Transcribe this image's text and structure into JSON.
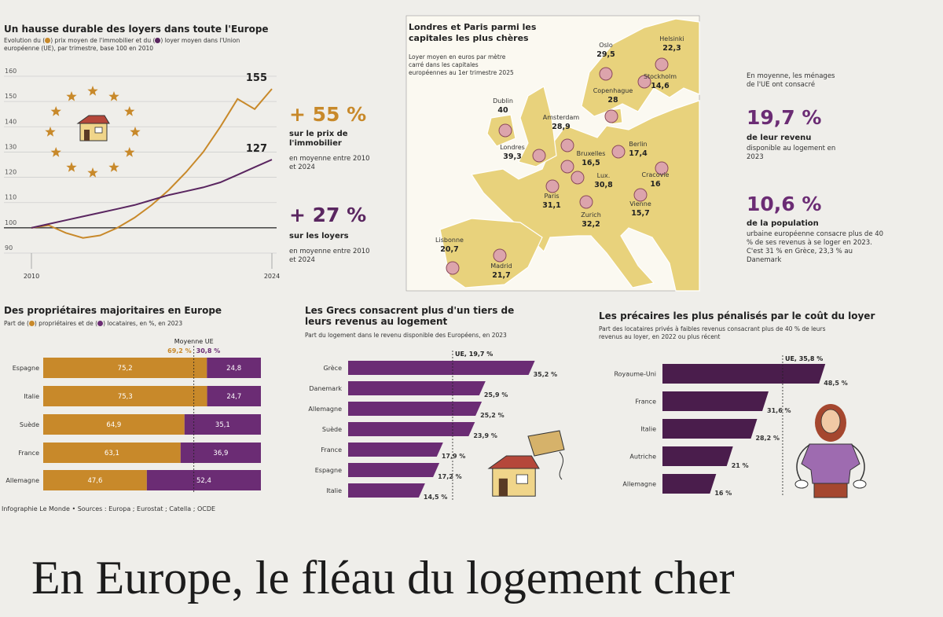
{
  "chart_data": [
    {
      "type": "line",
      "title": "Un hausse durable des loyers dans toute l'Europe",
      "subtitle": [
        "Evolution du (",
        ") prix moyen de l'immobilier et du (",
        ") loyer moyen dans l'Union européenne (UE), par trimestre, base 100 en 2010"
      ],
      "x": [
        2010,
        2011,
        2012,
        2013,
        2014,
        2015,
        2016,
        2017,
        2018,
        2019,
        2020,
        2021,
        2022,
        2023,
        2024
      ],
      "xlim": [
        2010,
        2024
      ],
      "xticks": [
        2010,
        2024
      ],
      "ylim": [
        90,
        160
      ],
      "yticks": [
        90,
        100,
        110,
        120,
        130,
        140,
        150,
        160
      ],
      "grid": true,
      "baseline": 100,
      "series": [
        {
          "color": "#c8892a",
          "values": [
            100,
            101,
            98,
            96,
            97,
            100,
            104,
            109,
            115,
            122,
            130,
            140,
            151,
            147,
            155
          ]
        },
        {
          "color": "#5a2660",
          "values": [
            100,
            101.5,
            103,
            104.5,
            106,
            107.5,
            109,
            111,
            113,
            114.5,
            116,
            118,
            121,
            124,
            127
          ]
        }
      ]
    },
    {
      "type": "bar",
      "horizontal": true,
      "stacked": true,
      "title": "Des propriétaires majoritaires en Europe",
      "subtitle": [
        "Part de (",
        ") propriétaires et de (",
        ") locataires, en %, en 2023"
      ],
      "categories": [
        "Espagne",
        "Italie",
        "Suède",
        "France",
        "Allemagne"
      ],
      "xlim": [
        0,
        100
      ],
      "series": [
        {
          "color": "#c8892a",
          "values": [
            75.2,
            75.3,
            64.9,
            63.1,
            47.6
          ],
          "value_labels": [
            "75,2",
            "75,3",
            "64,9",
            "63,1",
            "47,6"
          ]
        },
        {
          "color": "#6b2c74",
          "values": [
            24.8,
            24.7,
            35.1,
            36.9,
            52.4
          ],
          "value_labels": [
            "24,8",
            "24,7",
            "35,1",
            "36,9",
            "52,4"
          ]
        }
      ],
      "average": {
        "label": "Moyenne UE",
        "values": [
          69.2,
          30.8
        ],
        "value_labels": [
          "69,2 %",
          "30,8 %"
        ]
      }
    },
    {
      "type": "bar",
      "horizontal": true,
      "title": "Les Grecs consacrent plus d'un tiers de leurs revenus au logement",
      "subtitle": "Part du logement dans le revenu disponible des Européens, en 2023",
      "categories": [
        "Grèce",
        "Danemark",
        "Allemagne",
        "Suède",
        "France",
        "Espagne",
        "Italie"
      ],
      "values": [
        35.2,
        25.9,
        25.2,
        23.9,
        17.9,
        17.2,
        14.5
      ],
      "value_labels": [
        "35,2 %",
        "25,9 %",
        "25,2 %",
        "23,9 %",
        "17,9 %",
        "17,2 %",
        "14,5 %"
      ],
      "color": "#6b2c74",
      "xlim": [
        0,
        40
      ],
      "reference": {
        "label": "UE, 19,7 %",
        "value": 19.7
      }
    },
    {
      "type": "bar",
      "horizontal": true,
      "title": "Les précaires les plus pénalisés par le coût du loyer",
      "subtitle": "Part des locataires privés à faibles revenus consacrant plus de 40 % de leurs revenus au loyer, en 2022 ou plus récent",
      "categories": [
        "Royaume-Uni",
        "France",
        "Italie",
        "Autriche",
        "Allemagne"
      ],
      "values": [
        48.5,
        31.6,
        28.2,
        21,
        16
      ],
      "value_labels": [
        "48,5 %",
        "31,6 %",
        "28,2 %",
        "21 %",
        "16 %"
      ],
      "color": "#4a1d4c",
      "xlim": [
        0,
        55
      ],
      "reference": {
        "label": "UE, 35,8 %",
        "value": 35.8
      }
    }
  ],
  "stats": [
    {
      "value": "+ 55 %",
      "label": "sur le prix de l'immobilier",
      "note": "en moyenne entre 2010 et 2024"
    },
    {
      "value": "+ 27 %",
      "label": "sur les loyers",
      "note": "en moyenne entre 2010 et 2024"
    }
  ],
  "map": {
    "title": "Londres et Paris parmi les capitales les plus chères",
    "subtitle": "Loyer moyen en euros par mètre carré dans les capitales européennes au 1er trimestre 2025",
    "cities": [
      {
        "name": "Helsinki",
        "value": "22,3"
      },
      {
        "name": "Oslo",
        "value": "29,5"
      },
      {
        "name": "Stockholm",
        "value": "14,6"
      },
      {
        "name": "Copenhague",
        "value": "28"
      },
      {
        "name": "Dublin",
        "value": "40"
      },
      {
        "name": "Amsterdam",
        "value": "28,9"
      },
      {
        "name": "Londres",
        "value": "39,3"
      },
      {
        "name": "Bruxelles",
        "value": "16,5"
      },
      {
        "name": "Berlin",
        "value": "17,4"
      },
      {
        "name": "Lux.",
        "value": "30,8"
      },
      {
        "name": "Cracovie",
        "value": "16"
      },
      {
        "name": "Paris",
        "value": "31,1"
      },
      {
        "name": "Vienne",
        "value": "15,7"
      },
      {
        "name": "Zurich",
        "value": "32,2"
      },
      {
        "name": "Lisbonne",
        "value": "20,7"
      },
      {
        "name": "Madrid",
        "value": "21,7"
      }
    ]
  },
  "facts": [
    {
      "intro": "En moyenne, les ménages de l'UE ont consacré",
      "value": "19,7 %",
      "label": "de leur revenu",
      "note": "disponible au logement en 2023"
    },
    {
      "value": "10,6 %",
      "label": "de la population",
      "note": "urbaine européenne consacre plus de 40 % de ses revenus à se loger en 2023. C'est 31 % en Grèce, 23,3 % au Danemark"
    }
  ],
  "source": "Infographie Le Monde • Sources : Europa ; Eurostat ; Catella ; OCDE",
  "headline": "En Europe, le fléau du logement cher"
}
